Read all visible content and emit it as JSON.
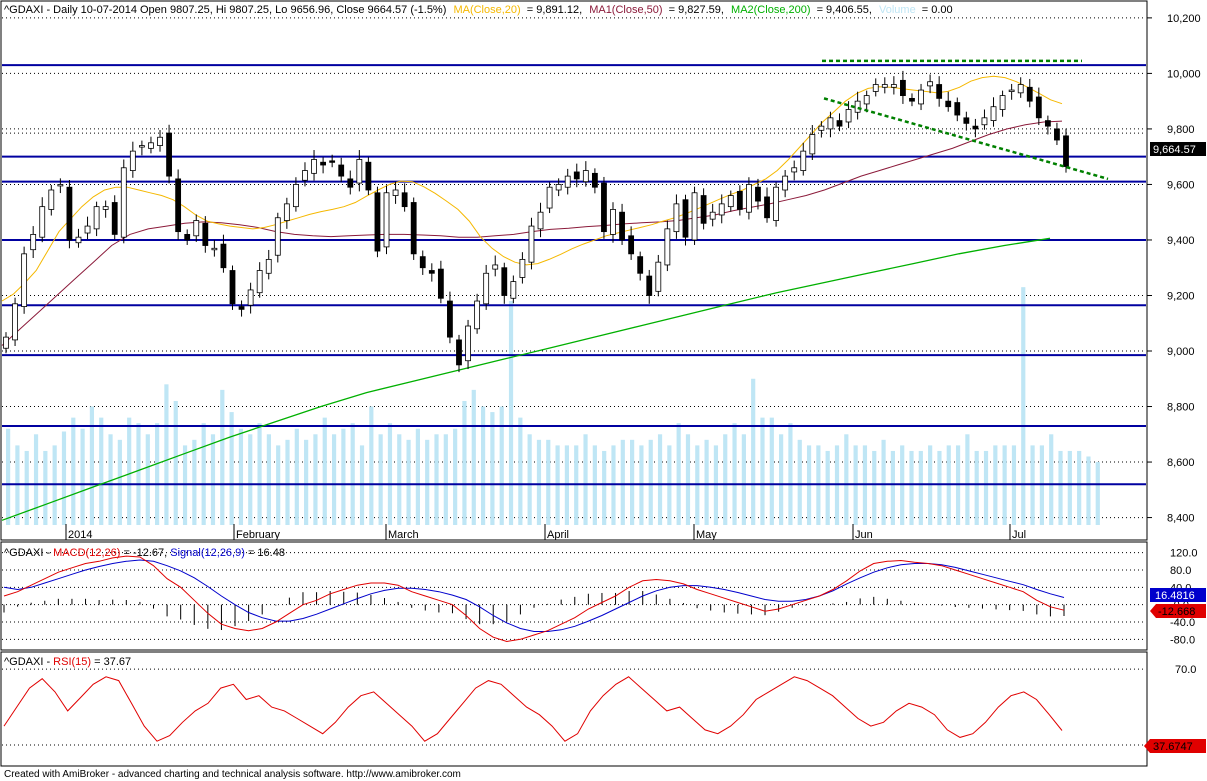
{
  "header": {
    "prefix": "^GDAXI - Daily 10-07-2014 Open 9807.25, Hi 9807.25, Lo 9656.96, Close 9664.57 (-1.5%)",
    "ma20": "MA(Close,20)",
    "ma20_value": "= 9,891.12,",
    "ma50": "MA1(Close,50)",
    "ma50_value": "= 9,827.59,",
    "ma200": "MA2(Close,200)",
    "ma200_value": "= 9,406.55,",
    "volume": "Volume",
    "volume_value": "= 0.00"
  },
  "macd_header": {
    "prefix": "^GDAXI - ",
    "macd": "MACD(12,26)",
    "macd_value": " = -12.67, ",
    "signal": "Signal(12,26,9)",
    "signal_value": " = 16.48"
  },
  "rsi_header": {
    "prefix": "^GDAXI - ",
    "rsi": "RSI(15)",
    "rsi_value": " = 37.67"
  },
  "price_label": "9,664.57",
  "signal_label": "16.4816",
  "macd_label": "-12.668",
  "rsi_label": "37.6747",
  "footer": "Created with AmiBroker - advanced charting and technical analysis software. http://www.amibroker.com",
  "colors": {
    "ma20": "#f5b800",
    "ma50": "#8b1a3a",
    "ma200": "#00b000",
    "volume": "#bfe6f5",
    "level": "#0000a0",
    "trend": "#008000",
    "macd": "#e00000",
    "signal": "#0000cc",
    "rsi": "#e00000"
  },
  "chart_data": [
    {
      "type": "candlestick",
      "yaxis_ticks": [
        "10,200",
        "10,000",
        "9,800",
        "9,600",
        "9,400",
        "9,200",
        "9,000",
        "8,800",
        "8,600",
        "8,400"
      ],
      "ylim": [
        8330,
        10250
      ],
      "xaxis_labels": [
        "2014",
        "February",
        "March",
        "April",
        "May",
        "Jun",
        "Jul"
      ],
      "level_lines": [
        10030,
        9700,
        9610,
        9400,
        9165,
        8985,
        8730,
        8520
      ],
      "close_path": [
        9050,
        9170,
        9350,
        9420,
        9520,
        9580,
        9600,
        9400,
        9410,
        9450,
        9520,
        9520,
        9420,
        9660,
        9720,
        9740,
        9750,
        9770,
        9630,
        9430,
        9400,
        9470,
        9380,
        9370,
        9300,
        9170,
        9150,
        9220,
        9290,
        9330,
        9480,
        9530,
        9600,
        9650,
        9690,
        9670,
        9680,
        9630,
        9590,
        9690,
        9580,
        9360,
        9570,
        9580,
        9520,
        9350,
        9300,
        9280,
        9190,
        9050,
        8950,
        9090,
        9180,
        9280,
        9310,
        9200,
        9250,
        9330,
        9450,
        9500,
        9590,
        9600,
        9630,
        9620,
        9650,
        9590,
        9430,
        9510,
        9400,
        9350,
        9280,
        9200,
        9320,
        9440,
        9530,
        9410,
        9570,
        9460,
        9500,
        9530,
        9560,
        9510,
        9600,
        9540,
        9480,
        9590,
        9630,
        9660,
        9720,
        9780,
        9810,
        9840,
        9810,
        9870,
        9900,
        9920,
        9960,
        9960,
        9960,
        9920,
        9900,
        9940,
        9970,
        9910,
        9880,
        9850,
        9820,
        9800,
        9840,
        9880,
        9920,
        9940,
        9960,
        9900,
        9840,
        9810,
        9760,
        9664.57
      ],
      "ma20_path": [
        9180,
        9205,
        9245,
        9290,
        9360,
        9430,
        9475,
        9520,
        9555,
        9580,
        9590,
        9590,
        9580,
        9570,
        9560,
        9545,
        9520,
        9490,
        9468,
        9458,
        9450,
        9445,
        9440,
        9445,
        9455,
        9468,
        9480,
        9492,
        9502,
        9510,
        9520,
        9535,
        9558,
        9580,
        9600,
        9612,
        9610,
        9592,
        9568,
        9540,
        9510,
        9468,
        9410,
        9370,
        9340,
        9320,
        9310,
        9315,
        9330,
        9348,
        9368,
        9385,
        9400,
        9415,
        9425,
        9435,
        9445,
        9455,
        9468,
        9480,
        9495,
        9512,
        9530,
        9548,
        9565,
        9580,
        9600,
        9620,
        9650,
        9690,
        9735,
        9780,
        9825,
        9862,
        9900,
        9928,
        9946,
        9952,
        9950,
        9945,
        9940,
        9935,
        9930,
        9935,
        9950,
        9972,
        9985,
        9990,
        9985,
        9970,
        9950,
        9928,
        9905,
        9891
      ],
      "ma50_path": [
        9020,
        9080,
        9140,
        9200,
        9260,
        9320,
        9380,
        9420,
        9440,
        9450,
        9460,
        9465,
        9462,
        9455,
        9445,
        9430,
        9420,
        9415,
        9412,
        9415,
        9418,
        9420,
        9420,
        9418,
        9415,
        9410,
        9410,
        9415,
        9420,
        9430,
        9438,
        9442,
        9448,
        9452,
        9458,
        9462,
        9465,
        9470,
        9480,
        9490,
        9505,
        9518,
        9530,
        9545,
        9560,
        9580,
        9605,
        9630,
        9650,
        9670,
        9690,
        9710,
        9730,
        9755,
        9780,
        9800,
        9815,
        9825,
        9828
      ],
      "ma200_path": [
        8390,
        8450,
        8510,
        8570,
        8630,
        8690,
        8745,
        8800,
        8850,
        8890,
        8930,
        8970,
        9010,
        9050,
        9090,
        9130,
        9170,
        9210,
        9245,
        9280,
        9315,
        9350,
        9380,
        9406
      ],
      "trend_lines": [
        {
          "style": "dashed",
          "from": [
            "2014-05-22",
            10045
          ],
          "to": [
            "2014-07-11",
            10045
          ]
        },
        {
          "style": "dashed",
          "from": [
            "2014-05-23",
            9910
          ],
          "to": [
            "2014-07-18",
            9620
          ]
        }
      ],
      "volume_path": [
        8720,
        8660,
        8640,
        8700,
        8640,
        8660,
        8710,
        8760,
        8720,
        8800,
        8760,
        8700,
        8680,
        8760,
        8740,
        8700,
        8740,
        8880,
        8820,
        8660,
        8680,
        8740,
        8700,
        8860,
        8780,
        8720,
        8700,
        8740,
        8700,
        8660,
        8680,
        8720,
        8680,
        8700,
        8760,
        8700,
        8720,
        8740,
        8660,
        8800,
        8700,
        8740,
        8700,
        8680,
        8720,
        8680,
        8700,
        8700,
        8720,
        8820,
        8860,
        8800,
        8780,
        8800,
        9180,
        8760,
        8700,
        8680,
        8680,
        8660,
        8660,
        8660,
        8700,
        8660,
        8640,
        8660,
        8680,
        8680,
        8660,
        8680,
        8700,
        8660,
        8740,
        8700,
        8660,
        8680,
        8660,
        8700,
        8740,
        8700,
        8900,
        8760,
        8760,
        8700,
        8740,
        8680,
        8660,
        8660,
        8640,
        8660,
        8700,
        8660,
        8660,
        8640,
        8680,
        8640,
        8660,
        8640,
        8640,
        8660,
        8640,
        8660,
        8660,
        8700,
        8640,
        8640,
        8660,
        8660,
        8660,
        9230,
        8660,
        8660,
        8700,
        8640,
        8640,
        8640,
        8620,
        8600
      ]
    },
    {
      "type": "line",
      "series": [
        {
          "name": "MACD(12,26)",
          "values": [
            20,
            30,
            45,
            60,
            75,
            85,
            95,
            100,
            108,
            112,
            110,
            90,
            60,
            40,
            10,
            -20,
            -45,
            -55,
            -60,
            -55,
            -40,
            -20,
            0,
            10,
            25,
            35,
            45,
            50,
            50,
            45,
            30,
            20,
            10,
            0,
            -25,
            -55,
            -75,
            -85,
            -80,
            -70,
            -60,
            -45,
            -30,
            -10,
            5,
            20,
            40,
            55,
            58,
            55,
            48,
            35,
            25,
            15,
            5,
            -5,
            -15,
            -10,
            0,
            10,
            20,
            35,
            55,
            78,
            95,
            100,
            102,
            98,
            95,
            90,
            80,
            70,
            60,
            50,
            40,
            30,
            10,
            -5,
            -12.67
          ]
        },
        {
          "name": "Signal(12,26,9)",
          "values": [
            40,
            35,
            40,
            50,
            60,
            70,
            80,
            88,
            95,
            100,
            103,
            100,
            90,
            78,
            62,
            42,
            20,
            0,
            -18,
            -30,
            -38,
            -38,
            -32,
            -22,
            -10,
            2,
            14,
            25,
            33,
            38,
            38,
            35,
            30,
            22,
            12,
            -5,
            -25,
            -42,
            -55,
            -62,
            -62,
            -58,
            -50,
            -38,
            -25,
            -10,
            5,
            20,
            32,
            40,
            44,
            44,
            40,
            35,
            28,
            20,
            12,
            8,
            8,
            12,
            20,
            32,
            48,
            62,
            75,
            85,
            92,
            95,
            95,
            92,
            86,
            78,
            70,
            62,
            54,
            46,
            35,
            25,
            16.48
          ]
        }
      ],
      "histogram": true,
      "yaxis_ticks": [
        "120.0",
        "80.0",
        "40.0",
        "-0.0",
        "-40.0",
        "-80.0"
      ],
      "ylim": [
        -100,
        140
      ]
    },
    {
      "type": "line",
      "series": [
        {
          "name": "RSI(15)",
          "values": [
            40,
            50,
            60,
            65,
            58,
            48,
            55,
            62,
            66,
            64,
            52,
            40,
            32,
            35,
            42,
            48,
            52,
            60,
            62,
            54,
            56,
            50,
            48,
            44,
            40,
            36,
            42,
            50,
            56,
            58,
            52,
            46,
            40,
            32,
            36,
            44,
            52,
            60,
            64,
            62,
            56,
            50,
            46,
            40,
            32,
            36,
            48,
            56,
            62,
            66,
            60,
            54,
            48,
            50,
            44,
            38,
            36,
            40,
            46,
            54,
            58,
            62,
            66,
            64,
            60,
            56,
            50,
            44,
            40,
            42,
            48,
            52,
            50,
            46,
            38,
            34,
            36,
            42,
            50,
            56,
            58,
            54,
            46,
            37.67
          ]
        }
      ],
      "yaxis_ticks": [
        "70.0"
      ],
      "ylim": [
        20,
        78
      ]
    }
  ]
}
